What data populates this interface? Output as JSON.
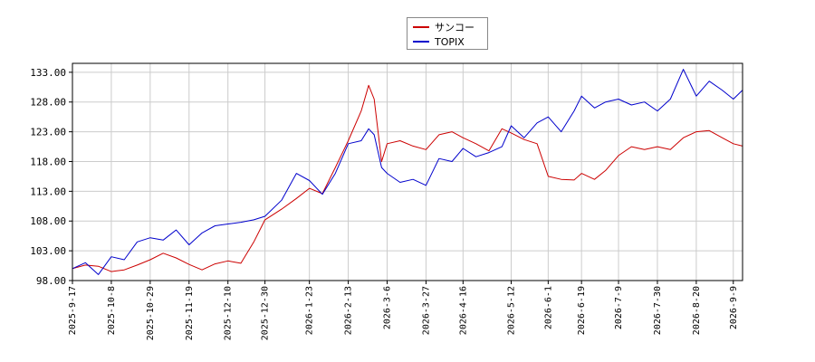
{
  "chart_data": {
    "type": "line",
    "title": "",
    "xlabel": "",
    "ylabel": "",
    "ylim": [
      98,
      134.5
    ],
    "y_ticks": [
      "98.00",
      "103.00",
      "108.00",
      "113.00",
      "118.00",
      "123.00",
      "128.00",
      "133.00"
    ],
    "x_ticks": [
      "2025-9-17",
      "2025-10-8",
      "2025-10-29",
      "2025-11-19",
      "2025-12-10",
      "2025-12-30",
      "2026-1-23",
      "2026-2-13",
      "2026-3-6",
      "2026-3-27",
      "2026-4-16",
      "2026-5-12",
      "2026-6-1",
      "2026-6-19",
      "2026-7-9",
      "2026-7-30",
      "2026-8-20",
      "2026-9-9"
    ],
    "grid": true,
    "legend_position": "top-center",
    "series": [
      {
        "name": "サンコー",
        "color": "#cc0000",
        "points": [
          [
            "2025-9-17",
            100.0
          ],
          [
            "2025-9-24",
            100.6
          ],
          [
            "2025-10-1",
            100.4
          ],
          [
            "2025-10-8",
            99.5
          ],
          [
            "2025-10-15",
            99.8
          ],
          [
            "2025-10-22",
            100.6
          ],
          [
            "2025-10-29",
            101.5
          ],
          [
            "2025-11-5",
            102.6
          ],
          [
            "2025-11-12",
            101.8
          ],
          [
            "2025-11-19",
            100.7
          ],
          [
            "2025-11-26",
            99.8
          ],
          [
            "2025-12-3",
            100.8
          ],
          [
            "2025-12-10",
            101.3
          ],
          [
            "2025-12-17",
            100.9
          ],
          [
            "2025-12-24",
            104.5
          ],
          [
            "2025-12-30",
            108.2
          ],
          [
            "2026-1-8",
            110.0
          ],
          [
            "2026-1-16",
            111.8
          ],
          [
            "2026-1-23",
            113.5
          ],
          [
            "2026-1-30",
            112.6
          ],
          [
            "2026-2-6",
            117.0
          ],
          [
            "2026-2-13",
            121.5
          ],
          [
            "2026-2-20",
            126.5
          ],
          [
            "2026-2-24",
            130.8
          ],
          [
            "2026-2-27",
            128.5
          ],
          [
            "2026-3-3",
            118.0
          ],
          [
            "2026-3-6",
            121.0
          ],
          [
            "2026-3-13",
            121.5
          ],
          [
            "2026-3-20",
            120.6
          ],
          [
            "2026-3-27",
            120.0
          ],
          [
            "2026-4-3",
            122.5
          ],
          [
            "2026-4-10",
            123.0
          ],
          [
            "2026-4-16",
            122.0
          ],
          [
            "2026-4-23",
            121.0
          ],
          [
            "2026-4-30",
            119.8
          ],
          [
            "2026-5-7",
            123.5
          ],
          [
            "2026-5-12",
            122.8
          ],
          [
            "2026-5-19",
            121.7
          ],
          [
            "2026-5-26",
            121.0
          ],
          [
            "2026-6-1",
            115.5
          ],
          [
            "2026-6-8",
            115.0
          ],
          [
            "2026-6-15",
            114.9
          ],
          [
            "2026-6-19",
            116.0
          ],
          [
            "2026-6-26",
            115.0
          ],
          [
            "2026-7-2",
            116.5
          ],
          [
            "2026-7-9",
            119.0
          ],
          [
            "2026-7-16",
            120.5
          ],
          [
            "2026-7-23",
            120.0
          ],
          [
            "2026-7-30",
            120.5
          ],
          [
            "2026-8-6",
            120.0
          ],
          [
            "2026-8-13",
            122.0
          ],
          [
            "2026-8-20",
            123.0
          ],
          [
            "2026-8-27",
            123.2
          ],
          [
            "2026-9-3",
            122.0
          ],
          [
            "2026-9-9",
            121.0
          ],
          [
            "2026-9-14",
            120.6
          ]
        ]
      },
      {
        "name": "TOPIX",
        "color": "#0000cc",
        "points": [
          [
            "2025-9-17",
            100.0
          ],
          [
            "2025-9-24",
            101.0
          ],
          [
            "2025-10-1",
            99.0
          ],
          [
            "2025-10-8",
            102.0
          ],
          [
            "2025-10-15",
            101.5
          ],
          [
            "2025-10-22",
            104.5
          ],
          [
            "2025-10-29",
            105.2
          ],
          [
            "2025-11-5",
            104.8
          ],
          [
            "2025-11-12",
            106.5
          ],
          [
            "2025-11-19",
            104.0
          ],
          [
            "2025-11-26",
            106.0
          ],
          [
            "2025-12-3",
            107.2
          ],
          [
            "2025-12-10",
            107.5
          ],
          [
            "2025-12-17",
            107.8
          ],
          [
            "2025-12-24",
            108.2
          ],
          [
            "2025-12-30",
            108.8
          ],
          [
            "2026-1-8",
            111.5
          ],
          [
            "2026-1-16",
            116.0
          ],
          [
            "2026-1-23",
            114.8
          ],
          [
            "2026-1-30",
            112.5
          ],
          [
            "2026-2-6",
            116.0
          ],
          [
            "2026-2-13",
            121.0
          ],
          [
            "2026-2-20",
            121.5
          ],
          [
            "2026-2-24",
            123.5
          ],
          [
            "2026-2-27",
            122.5
          ],
          [
            "2026-3-3",
            117.0
          ],
          [
            "2026-3-6",
            116.0
          ],
          [
            "2026-3-13",
            114.5
          ],
          [
            "2026-3-20",
            115.0
          ],
          [
            "2026-3-27",
            114.0
          ],
          [
            "2026-4-3",
            118.5
          ],
          [
            "2026-4-10",
            118.0
          ],
          [
            "2026-4-16",
            120.2
          ],
          [
            "2026-4-23",
            118.8
          ],
          [
            "2026-4-30",
            119.5
          ],
          [
            "2026-5-7",
            120.5
          ],
          [
            "2026-5-12",
            124.0
          ],
          [
            "2026-5-19",
            122.0
          ],
          [
            "2026-5-26",
            124.5
          ],
          [
            "2026-6-1",
            125.5
          ],
          [
            "2026-6-8",
            123.0
          ],
          [
            "2026-6-15",
            126.5
          ],
          [
            "2026-6-19",
            129.0
          ],
          [
            "2026-6-26",
            127.0
          ],
          [
            "2026-7-2",
            128.0
          ],
          [
            "2026-7-9",
            128.5
          ],
          [
            "2026-7-16",
            127.5
          ],
          [
            "2026-7-23",
            128.0
          ],
          [
            "2026-7-30",
            126.5
          ],
          [
            "2026-8-6",
            128.5
          ],
          [
            "2026-8-13",
            133.5
          ],
          [
            "2026-8-20",
            129.0
          ],
          [
            "2026-8-27",
            131.5
          ],
          [
            "2026-9-3",
            130.0
          ],
          [
            "2026-9-9",
            128.5
          ],
          [
            "2026-9-14",
            130.0
          ]
        ]
      }
    ]
  }
}
